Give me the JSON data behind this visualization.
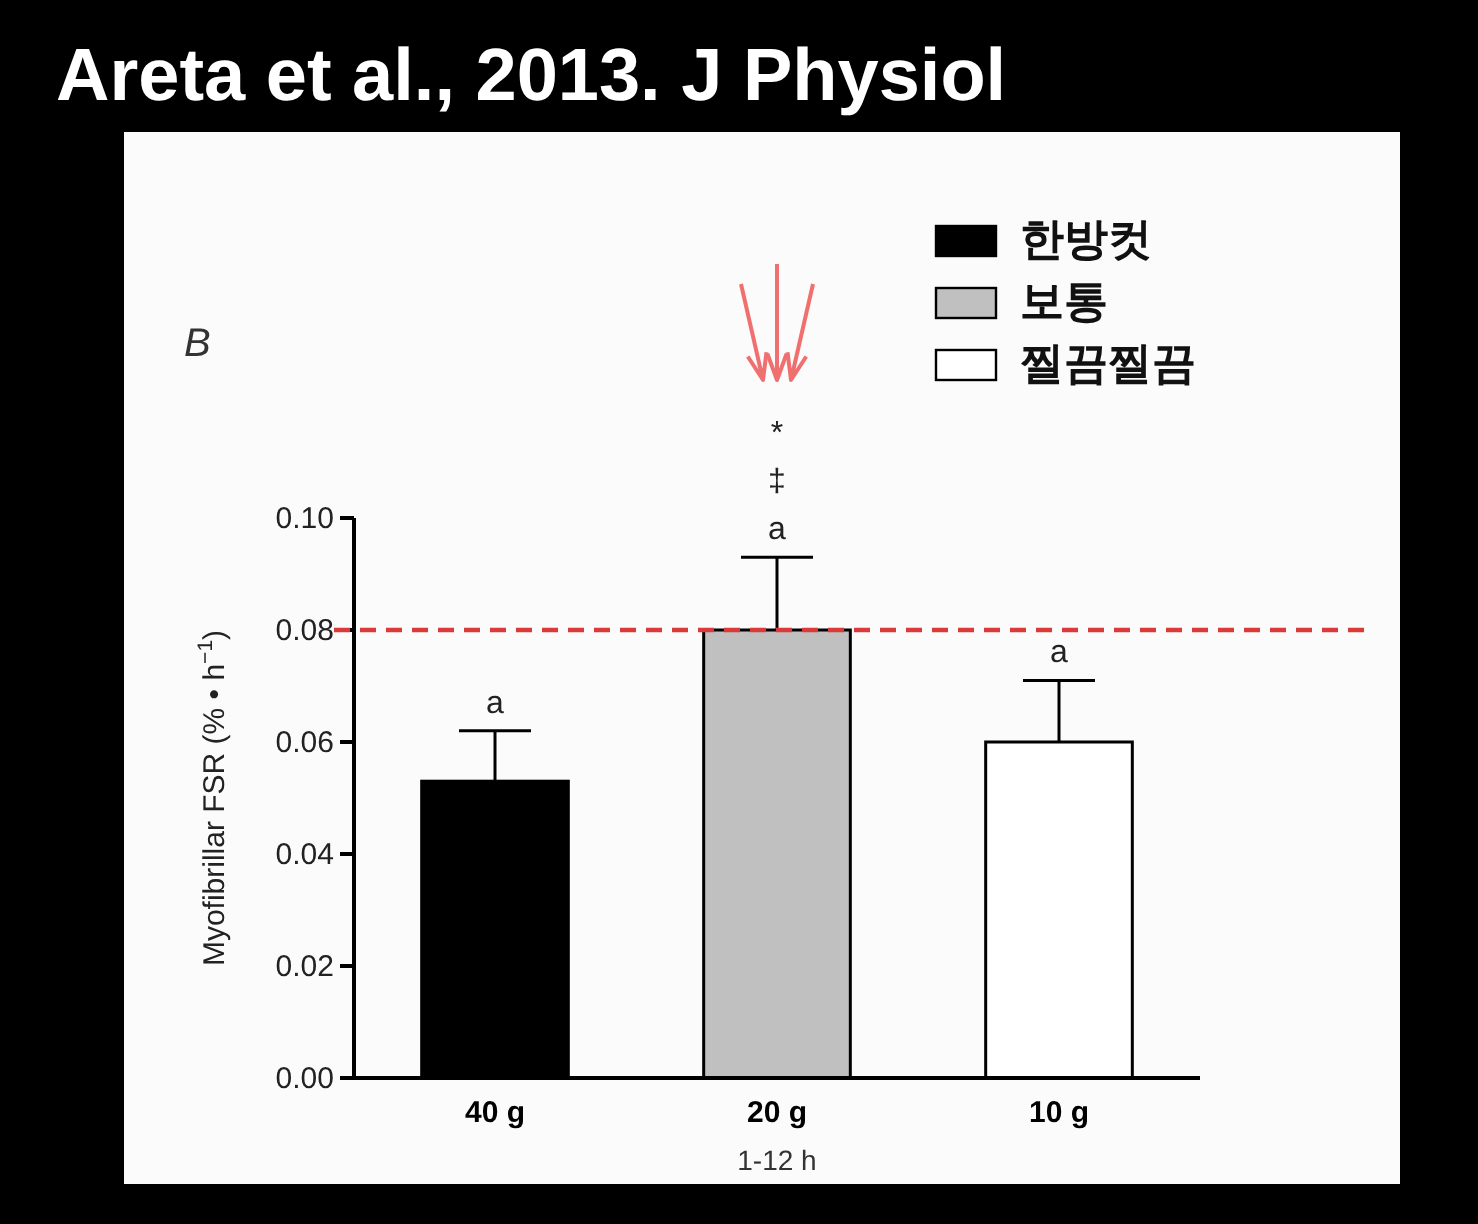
{
  "chart_data": {
    "type": "bar",
    "title": "Areta et al., 2013. J Physiol",
    "xlabel": "1-12 h",
    "ylabel": "Myofibrillar FSR (% • h$^{−1}$)",
    "categories": [
      "40 g",
      "20 g",
      "10 g"
    ],
    "series": [
      {
        "name": "한방컷",
        "color": "#000000",
        "values": [
          0.053,
          null,
          null
        ],
        "errors": [
          [
            0.053,
            0.062
          ],
          null,
          null
        ]
      },
      {
        "name": "보통",
        "color": "#c0c0c0",
        "values": [
          null,
          0.08,
          null
        ],
        "errors": [
          null,
          [
            0.08,
            0.093
          ],
          null
        ]
      },
      {
        "name": "찔끔찔끔",
        "color": "#ffffff",
        "values": [
          null,
          null,
          0.06
        ],
        "errors": [
          null,
          null,
          [
            0.06,
            0.071
          ]
        ]
      }
    ],
    "ylim": [
      0,
      0.1
    ],
    "yticks": [
      {
        "value": 0,
        "label": "0.00"
      },
      {
        "value": 0.02,
        "label": "0.02"
      },
      {
        "value": 0.04,
        "label": "0.04"
      },
      {
        "value": 0.06,
        "label": "0.06"
      },
      {
        "value": 0.08,
        "label": "0.08"
      },
      {
        "value": 0.1,
        "label": "0.10"
      }
    ],
    "ref_lines": [
      {
        "axis": "y",
        "value": 0.08,
        "color": "#d93a3a",
        "line_style": "dashed"
      }
    ],
    "annotations": [
      "B",
      {
        "text": "a",
        "x": "40 g",
        "y": 0.062
      },
      {
        "text": "a",
        "x": "20 g",
        "y": 0.093
      },
      {
        "text": "a",
        "x": "10 g",
        "y": 0.071
      },
      "‡",
      "*"
    ],
    "grid": false,
    "legend": "top right"
  }
}
